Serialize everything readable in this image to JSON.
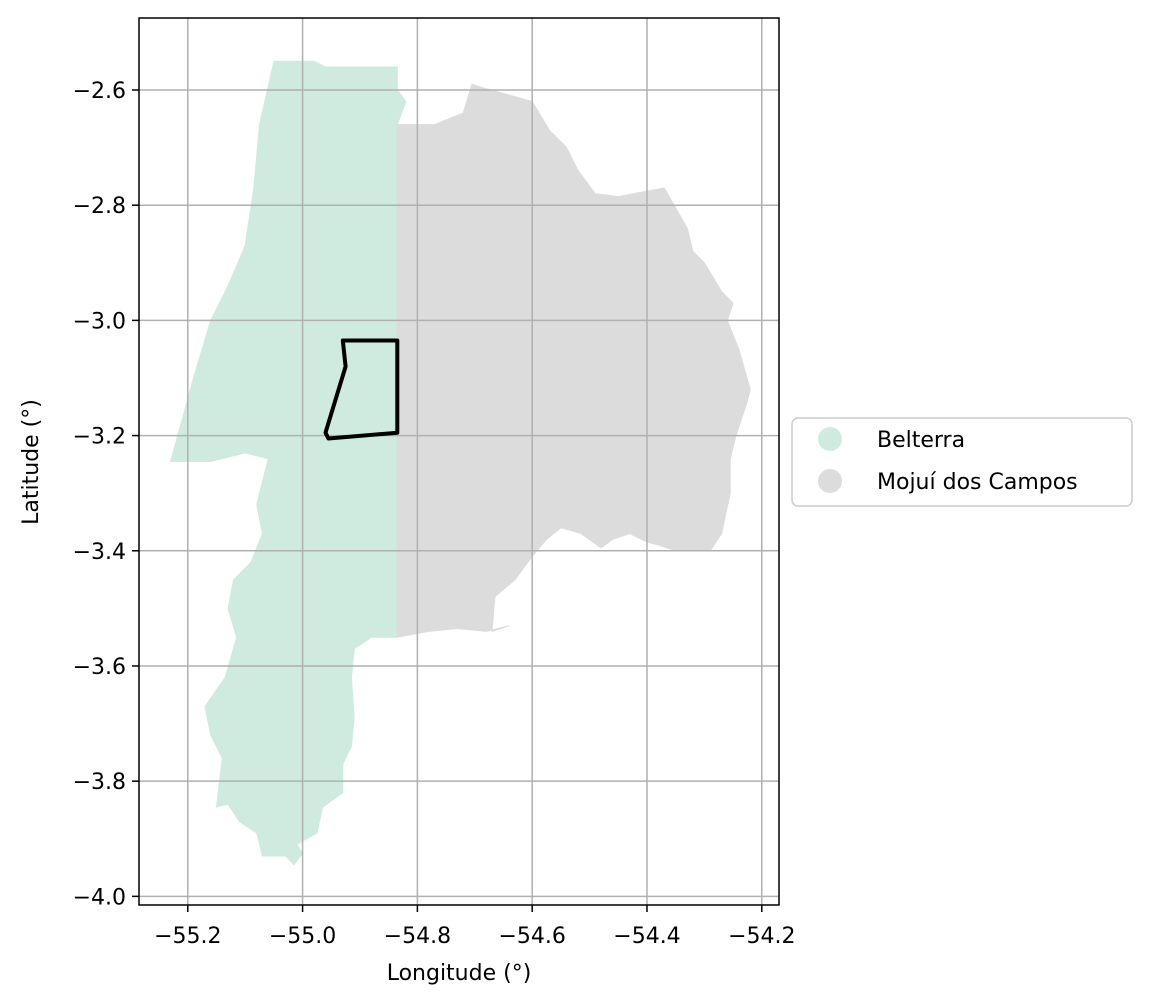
{
  "chart_data": {
    "type": "map",
    "xlabel": "Longitude (°)",
    "ylabel": "Latitude (°)",
    "xlim": [
      -55.285,
      -54.17
    ],
    "ylim": [
      -4.015,
      -2.475
    ],
    "grid": true,
    "legend_position": "right",
    "xticks": [
      {
        "value": -55.2,
        "label": "−55.2"
      },
      {
        "value": -55.0,
        "label": "−55.0"
      },
      {
        "value": -54.8,
        "label": "−54.8"
      },
      {
        "value": -54.6,
        "label": "−54.6"
      },
      {
        "value": -54.4,
        "label": "−54.4"
      },
      {
        "value": -54.2,
        "label": "−54.2"
      }
    ],
    "yticks": [
      {
        "value": -2.6,
        "label": "−2.6"
      },
      {
        "value": -2.8,
        "label": "−2.8"
      },
      {
        "value": -3.0,
        "label": "−3.0"
      },
      {
        "value": -3.2,
        "label": "−3.2"
      },
      {
        "value": -3.4,
        "label": "−3.4"
      },
      {
        "value": -3.6,
        "label": "−3.6"
      },
      {
        "value": -3.8,
        "label": "−3.8"
      },
      {
        "value": -4.0,
        "label": "−4.0"
      }
    ],
    "regions": [
      {
        "name": "Belterra",
        "color": "#cfebdf",
        "polygon": [
          [
            -55.05,
            -2.55
          ],
          [
            -54.98,
            -2.55
          ],
          [
            -54.96,
            -2.56
          ],
          [
            -54.835,
            -2.56
          ],
          [
            -54.835,
            -2.6
          ],
          [
            -54.82,
            -2.62
          ],
          [
            -54.835,
            -2.66
          ],
          [
            -54.835,
            -3.55
          ],
          [
            -54.86,
            -3.55
          ],
          [
            -54.88,
            -3.55
          ],
          [
            -54.91,
            -3.57
          ],
          [
            -54.915,
            -3.62
          ],
          [
            -54.91,
            -3.69
          ],
          [
            -54.915,
            -3.74
          ],
          [
            -54.93,
            -3.77
          ],
          [
            -54.93,
            -3.82
          ],
          [
            -54.965,
            -3.845
          ],
          [
            -54.975,
            -3.89
          ],
          [
            -55.01,
            -3.91
          ],
          [
            -55.0,
            -3.925
          ],
          [
            -55.015,
            -3.945
          ],
          [
            -55.03,
            -3.93
          ],
          [
            -55.07,
            -3.93
          ],
          [
            -55.08,
            -3.89
          ],
          [
            -55.11,
            -3.87
          ],
          [
            -55.13,
            -3.84
          ],
          [
            -55.15,
            -3.845
          ],
          [
            -55.14,
            -3.76
          ],
          [
            -55.16,
            -3.72
          ],
          [
            -55.17,
            -3.67
          ],
          [
            -55.135,
            -3.62
          ],
          [
            -55.115,
            -3.55
          ],
          [
            -55.13,
            -3.5
          ],
          [
            -55.12,
            -3.45
          ],
          [
            -55.09,
            -3.42
          ],
          [
            -55.07,
            -3.37
          ],
          [
            -55.08,
            -3.32
          ],
          [
            -55.06,
            -3.24
          ],
          [
            -55.1,
            -3.23
          ],
          [
            -55.16,
            -3.245
          ],
          [
            -55.23,
            -3.245
          ],
          [
            -55.19,
            -3.1
          ],
          [
            -55.16,
            -3.0
          ],
          [
            -55.13,
            -2.94
          ],
          [
            -55.1,
            -2.87
          ],
          [
            -55.085,
            -2.77
          ],
          [
            -55.075,
            -2.66
          ]
        ]
      },
      {
        "name": "Mojuí dos Campos",
        "color": "#dcdcdc",
        "polygon": [
          [
            -54.835,
            -2.66
          ],
          [
            -54.77,
            -2.66
          ],
          [
            -54.72,
            -2.64
          ],
          [
            -54.705,
            -2.59
          ],
          [
            -54.69,
            -2.595
          ],
          [
            -54.6,
            -2.62
          ],
          [
            -54.57,
            -2.67
          ],
          [
            -54.54,
            -2.7
          ],
          [
            -54.52,
            -2.74
          ],
          [
            -54.49,
            -2.78
          ],
          [
            -54.45,
            -2.785
          ],
          [
            -54.37,
            -2.77
          ],
          [
            -54.33,
            -2.84
          ],
          [
            -54.32,
            -2.88
          ],
          [
            -54.3,
            -2.9
          ],
          [
            -54.27,
            -2.95
          ],
          [
            -54.25,
            -2.97
          ],
          [
            -54.26,
            -3.0
          ],
          [
            -54.24,
            -3.05
          ],
          [
            -54.22,
            -3.12
          ],
          [
            -54.225,
            -3.14
          ],
          [
            -54.245,
            -3.2
          ],
          [
            -54.255,
            -3.24
          ],
          [
            -54.255,
            -3.3
          ],
          [
            -54.27,
            -3.37
          ],
          [
            -54.29,
            -3.4
          ],
          [
            -54.35,
            -3.4
          ],
          [
            -54.38,
            -3.39
          ],
          [
            -54.4,
            -3.385
          ],
          [
            -54.43,
            -3.37
          ],
          [
            -54.46,
            -3.38
          ],
          [
            -54.48,
            -3.395
          ],
          [
            -54.515,
            -3.37
          ],
          [
            -54.55,
            -3.36
          ],
          [
            -54.575,
            -3.38
          ],
          [
            -54.6,
            -3.41
          ],
          [
            -54.63,
            -3.45
          ],
          [
            -54.665,
            -3.48
          ],
          [
            -54.67,
            -3.54
          ],
          [
            -54.64,
            -3.53
          ],
          [
            -54.68,
            -3.54
          ],
          [
            -54.73,
            -3.535
          ],
          [
            -54.78,
            -3.54
          ],
          [
            -54.835,
            -3.55
          ]
        ]
      }
    ],
    "outline": {
      "color": "#000000",
      "polygon": [
        [
          -54.93,
          -3.035
        ],
        [
          -54.835,
          -3.035
        ],
        [
          -54.835,
          -3.195
        ],
        [
          -54.955,
          -3.205
        ],
        [
          -54.96,
          -3.195
        ],
        [
          -54.925,
          -3.08
        ]
      ]
    },
    "legend": [
      {
        "label": "Belterra",
        "color": "#cfebdf"
      },
      {
        "label": "Mojuí dos Campos",
        "color": "#dcdcdc"
      }
    ]
  }
}
